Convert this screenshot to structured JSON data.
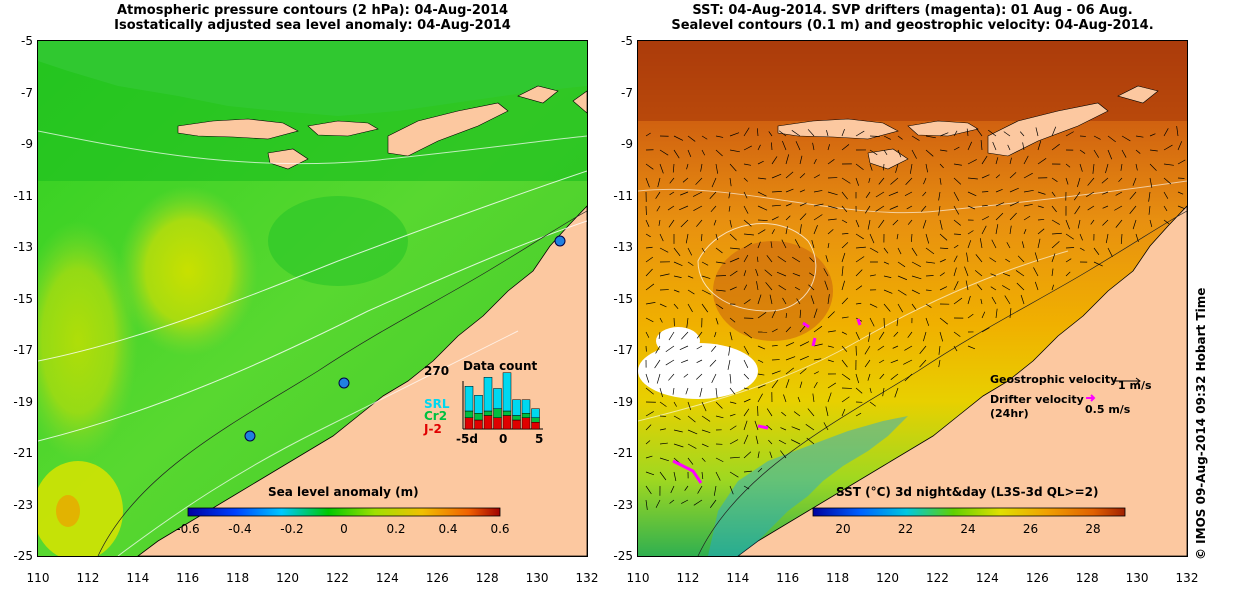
{
  "left_panel": {
    "title_line1": "Atmospheric pressure contours (2 hPa): 04-Aug-2014",
    "title_line2": "Isostatically adjusted sea level anomaly: 04-Aug-2014",
    "colorbar": {
      "title": "Sea level anomaly (m)",
      "ticks": [
        "-0.6",
        "-0.4",
        "-0.2",
        "0",
        "0.2",
        "0.4",
        "0.6"
      ]
    },
    "data_count": {
      "title": "Data count",
      "max_label": "270",
      "series_labels": [
        "SRL",
        "Cr2",
        "J-2"
      ],
      "series_colors": [
        "#00d8f0",
        "#00c040",
        "#e00000"
      ],
      "x_labels": [
        "-5d",
        "0",
        "5"
      ],
      "stack_fractions": [
        [
          0.55,
          0.15,
          0.25
        ],
        [
          0.4,
          0.15,
          0.2
        ],
        [
          0.75,
          0.1,
          0.3
        ],
        [
          0.45,
          0.2,
          0.25
        ],
        [
          0.85,
          0.1,
          0.3
        ],
        [
          0.35,
          0.1,
          0.2
        ],
        [
          0.3,
          0.1,
          0.25
        ],
        [
          0.2,
          0.1,
          0.15
        ]
      ]
    }
  },
  "right_panel": {
    "title_line1": "SST: 04-Aug-2014. SVP drifters (magenta): 01 Aug - 06 Aug.",
    "title_line2": "Sealevel contours (0.1 m) and geostrophic velocity: 04-Aug-2014.",
    "colorbar": {
      "title": "SST (°C) 3d night&day (L3S-3d QL>=2)",
      "ticks": [
        "20",
        "22",
        "24",
        "26",
        "28"
      ]
    },
    "legend": {
      "geostrophic_label": "Geostrophic velocity",
      "geostrophic_scale": "1 m/s",
      "drifter_label": "Drifter velocity",
      "drifter_sub": "(24hr)",
      "drifter_scale": "0.5 m/s"
    }
  },
  "axes": {
    "y_ticks": [
      "-5",
      "-7",
      "-9",
      "-11",
      "-13",
      "-15",
      "-17",
      "-19",
      "-21",
      "-23",
      "-25"
    ],
    "x_ticks": [
      "110",
      "112",
      "114",
      "116",
      "118",
      "120",
      "122",
      "124",
      "126",
      "128",
      "130",
      "132"
    ],
    "lon_range": [
      110,
      132
    ],
    "lat_range": [
      -25,
      -5
    ]
  },
  "credit": "© IMOS 09-Aug-2014 09:32 Hobart Time"
}
